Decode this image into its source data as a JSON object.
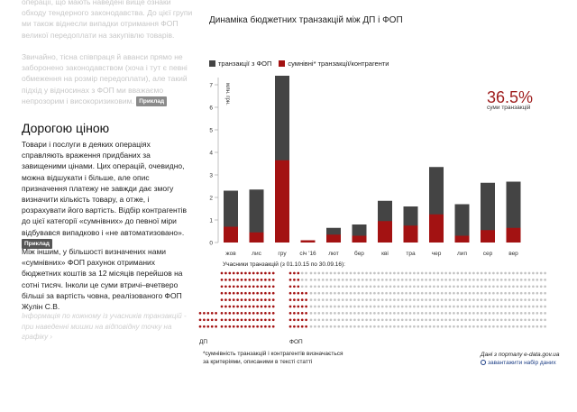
{
  "left": {
    "top_text": "операції, що мають наведені вище ознаки обходу тендерного законодавства. До цієї групи ми також віднесли випадки отримання ФОП великої передоплати на закупівлю товарів.",
    "para2": "Звичайно, тісна співпраця й аванси прямо не заборонено законодавством (хоча і тут є певні обмеження на розмір передоплати), але такий підхід у відносинах з ФОП ми вважаємо непрозорим і високоризиковим.",
    "badge1": "Приклад",
    "heading": "Дорогою ціною",
    "para3": "Товари і послуги в деяких операціях справляють враження придбаних за завищеними цінами. Цих операцій, очевидно, можна відшукати і більше, але опис призначення платежу не завжди дає змогу визначити кількість товару, а отже, і розрахувати його вартість. Відбір контрагентів до цієї категорії «сумнівних» до певної міри відбувався випадково і «не автоматизовано».",
    "badge2": "Приклад",
    "para4": "Між іншим, у більшості визначених нами «сумнівних» ФОП рахунок отриманих бюджетних коштів за 12 місяців перейшов на сотні тисяч. Інколи це суми втричі–вчетверо більші за вартість човна, реалізованого ФОП Жулін С.В.",
    "note": "Інформація по кожному із учасників транзакцій - при наведенні мишки на відповідну точку на графіку",
    "note_arrow": "›"
  },
  "chart_title": "Динаміка бюджетних транзакцій між ДП і ФОП",
  "legend": {
    "fop": "транзакції з ФОП",
    "suspicious": "сумнівні* транзакції/контрагенти"
  },
  "colors": {
    "fop": "#444444",
    "suspicious": "#a31212",
    "dot_gray": "#c4c4c4"
  },
  "percent": "36.5%",
  "percent_label": "суми транзакцій",
  "participants_label": "Учасники транзакцій (з 01.10.15 по 30.09.16):",
  "dp_label": "ДП",
  "fop_label": "ФОП",
  "footnote_line1": "*сумнівність транзакцій і контрагентів визначається",
  "footnote_line2": "за критеріями, описаними в тексті статті",
  "source": "Дані з порталу e-data.gov.ua",
  "download": "завантажити набір даних",
  "chart_data": {
    "type": "bar",
    "categories": [
      "жов",
      "лис",
      "гру",
      "січ '16",
      "лют",
      "бер",
      "кві",
      "тра",
      "чер",
      "лип",
      "сер",
      "вер"
    ],
    "series": [
      {
        "name": "транзакції з ФОП",
        "values": [
          2.3,
          2.35,
          7.4,
          0.1,
          0.65,
          0.8,
          1.85,
          1.6,
          3.35,
          1.7,
          2.65,
          2.7
        ]
      },
      {
        "name": "сумнівні* транзакції/контрагенти",
        "values": [
          0.7,
          0.45,
          3.65,
          0.1,
          0.35,
          0.3,
          0.95,
          0.75,
          1.25,
          0.3,
          0.55,
          0.65
        ]
      }
    ],
    "ylabel": "млн. грн.",
    "yticks": [
      "0",
      "1",
      "2",
      "3",
      "4",
      "5",
      "6",
      "7"
    ],
    "ylim": [
      0,
      7.5
    ],
    "stacked_overlay": true
  }
}
